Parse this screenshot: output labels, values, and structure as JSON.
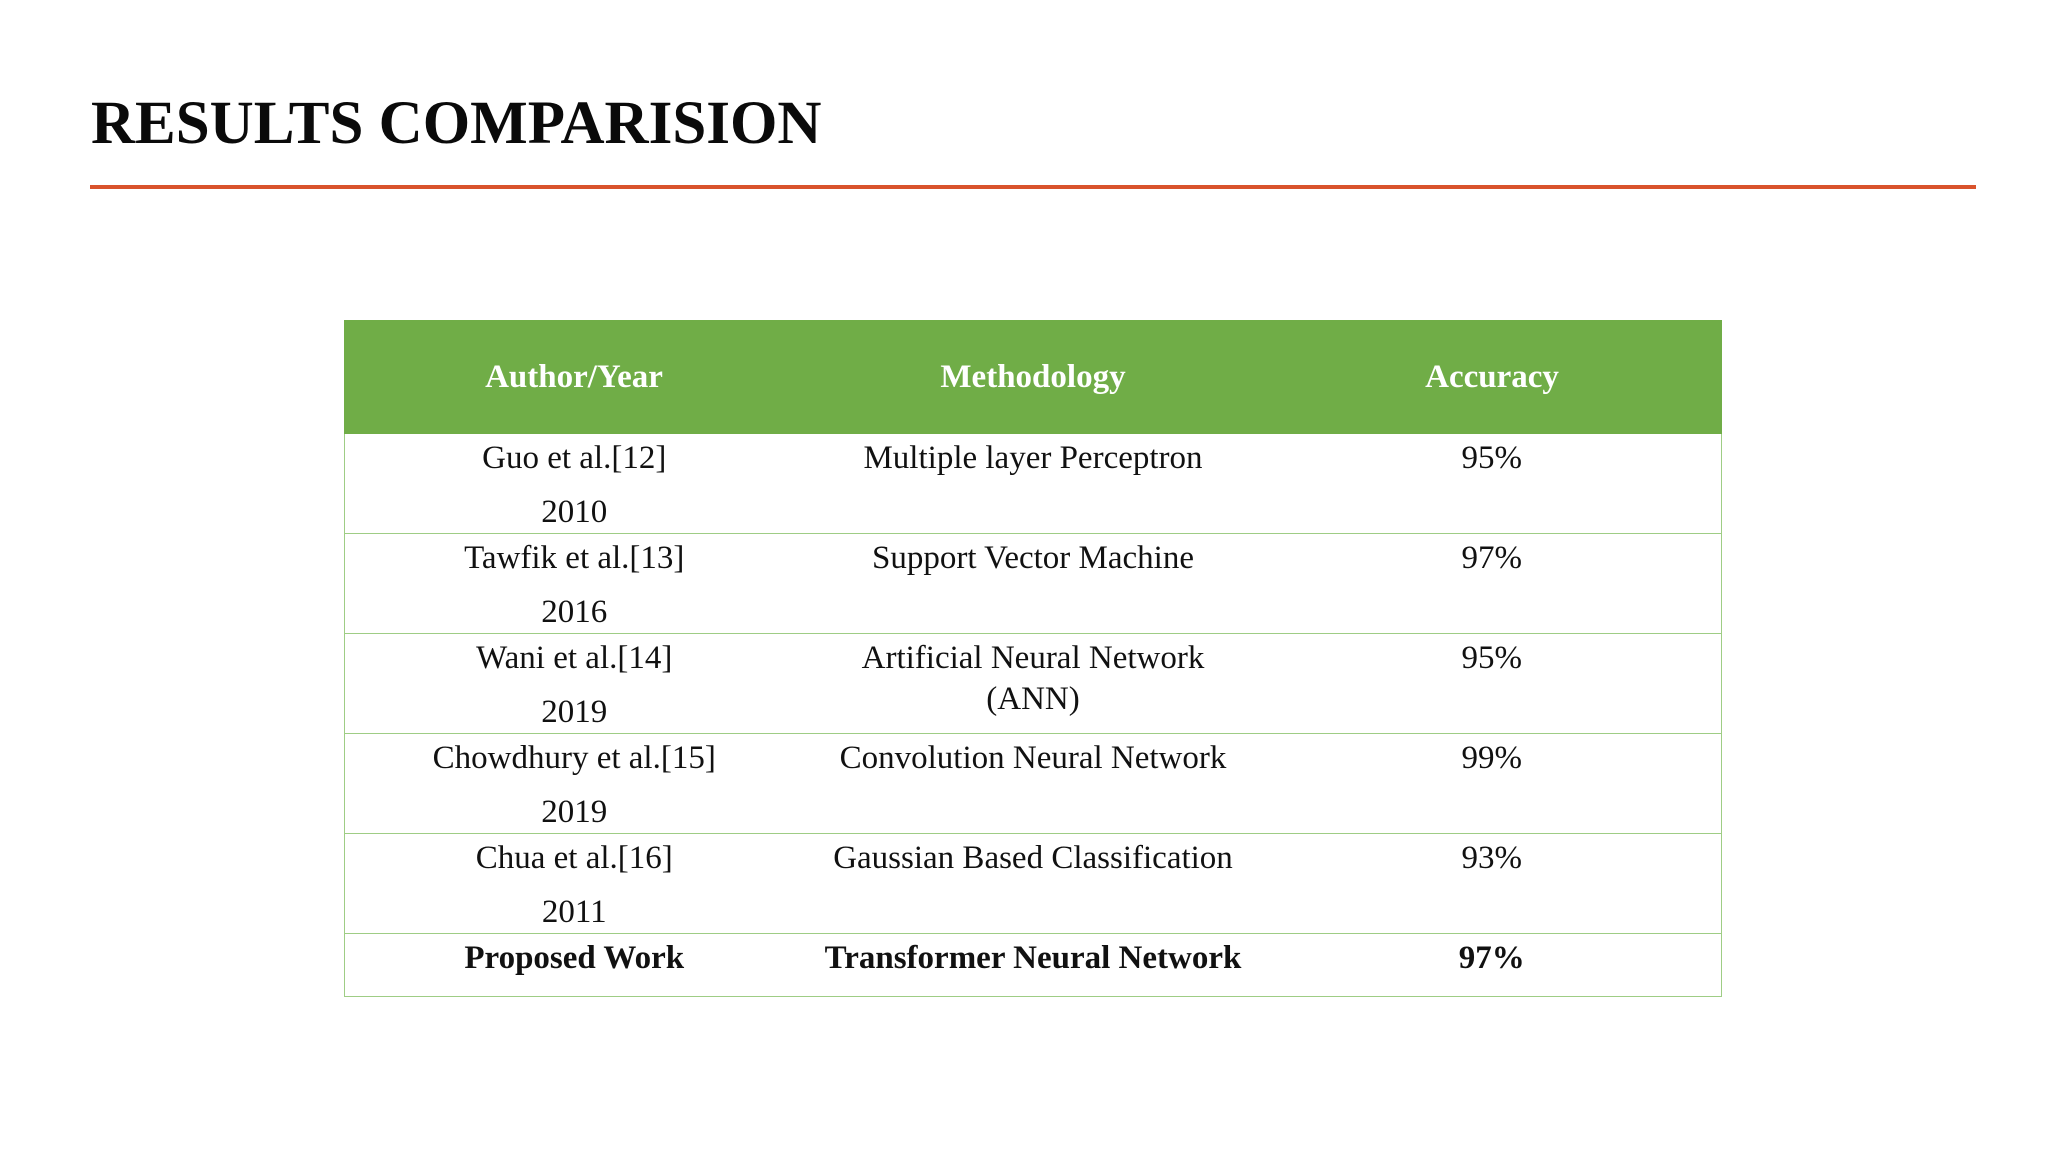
{
  "slide": {
    "title": "RESULTS COMPARISION",
    "accent_color": "#d9532c"
  },
  "table": {
    "header_color": "#70ad47",
    "headers": [
      "Author/Year",
      "Methodology",
      "Accuracy"
    ],
    "rows": [
      {
        "author": "Guo et al.[12]",
        "year": "2010",
        "method": [
          "Multiple layer Perceptron"
        ],
        "accuracy": "95%"
      },
      {
        "author": "Tawfik et al.[13]",
        "year": "2016",
        "method": [
          "Support Vector Machine"
        ],
        "accuracy": "97%"
      },
      {
        "author": "Wani et al.[14]",
        "year": "2019",
        "method": [
          "Artificial Neural Network",
          "(ANN)"
        ],
        "accuracy": "95%"
      },
      {
        "author": "Chowdhury et al.[15]",
        "year": "2019",
        "method": [
          "Convolution Neural Network"
        ],
        "accuracy": "99%"
      },
      {
        "author": "Chua et al.[16]",
        "year": "2011",
        "method": [
          "Gaussian Based Classification"
        ],
        "accuracy": "93%"
      }
    ],
    "proposed": {
      "author": "Proposed Work",
      "method": "Transformer Neural Network",
      "accuracy": "97%"
    }
  }
}
